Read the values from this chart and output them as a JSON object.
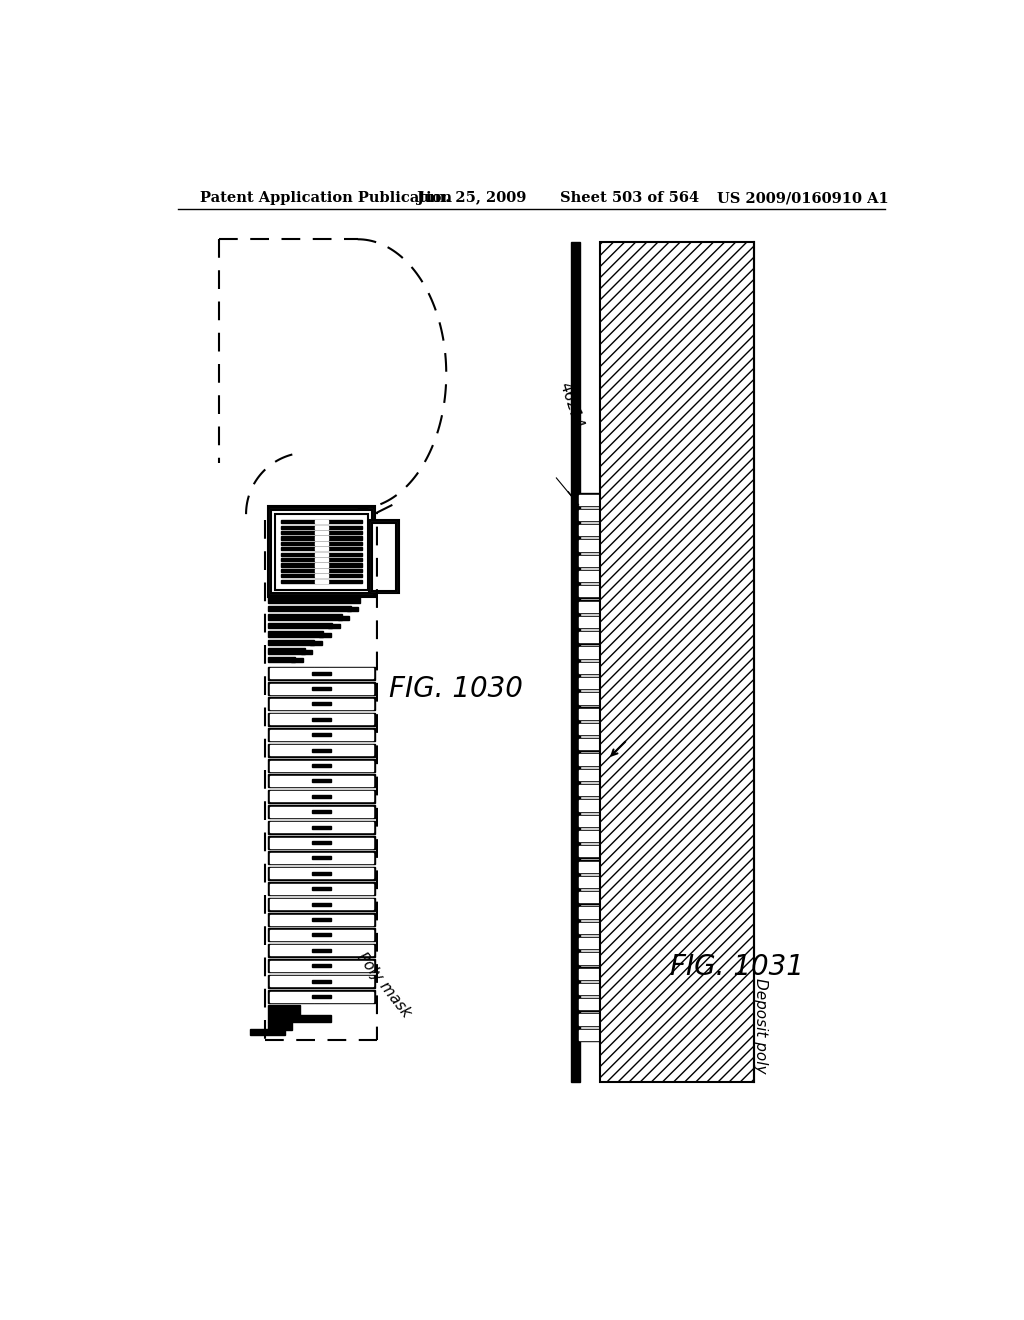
{
  "bg_color": "#ffffff",
  "header_text": "Patent Application Publication",
  "header_date": "Jun. 25, 2009",
  "header_sheet": "Sheet 503 of 564",
  "header_patent": "US 2009/0160910 A1",
  "fig1_label": "FIG. 1030",
  "fig2_label": "FIG. 1031",
  "label1": "Poly mask",
  "label2": "Deposit poly",
  "label3": "46214"
}
